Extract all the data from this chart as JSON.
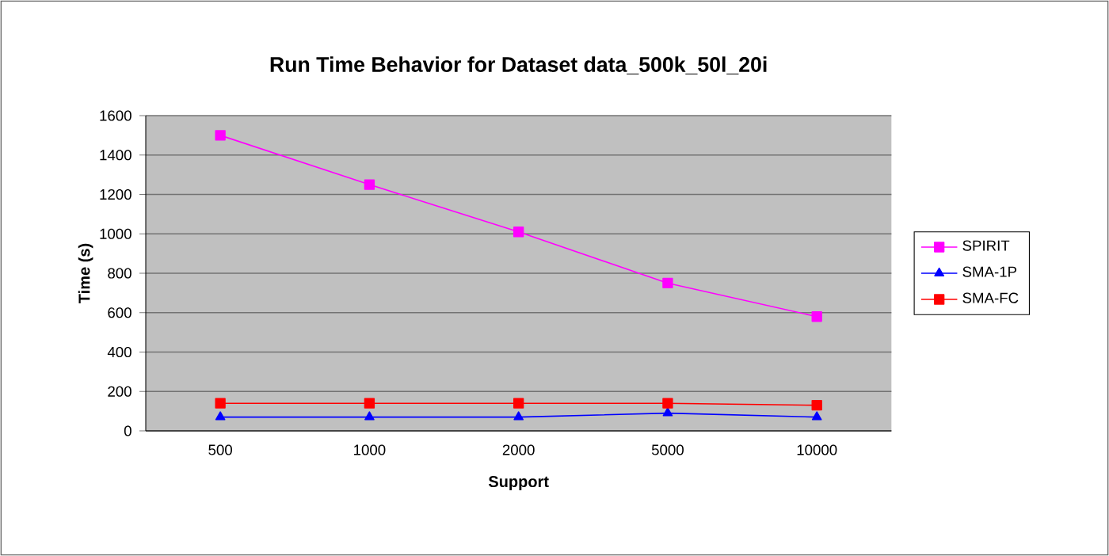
{
  "chart_data": {
    "type": "line",
    "title": "Run Time Behavior for Dataset data_500k_50l_20i",
    "xlabel": "Support",
    "ylabel": "Time (s)",
    "categories": [
      "500",
      "1000",
      "2000",
      "5000",
      "10000"
    ],
    "series": [
      {
        "name": "SPIRIT",
        "color": "#ff00ff",
        "marker": "square",
        "values": [
          1500,
          1250,
          1010,
          750,
          580
        ]
      },
      {
        "name": "SMA-1P",
        "color": "#0000ff",
        "marker": "triangle",
        "values": [
          70,
          70,
          70,
          90,
          70
        ]
      },
      {
        "name": "SMA-FC",
        "color": "#ff0000",
        "marker": "square",
        "values": [
          140,
          140,
          140,
          140,
          130
        ]
      }
    ],
    "ylim": [
      0,
      1600
    ],
    "yticks": [
      0,
      200,
      400,
      600,
      800,
      1000,
      1200,
      1400,
      1600
    ],
    "grid": "y",
    "legend": "right"
  }
}
